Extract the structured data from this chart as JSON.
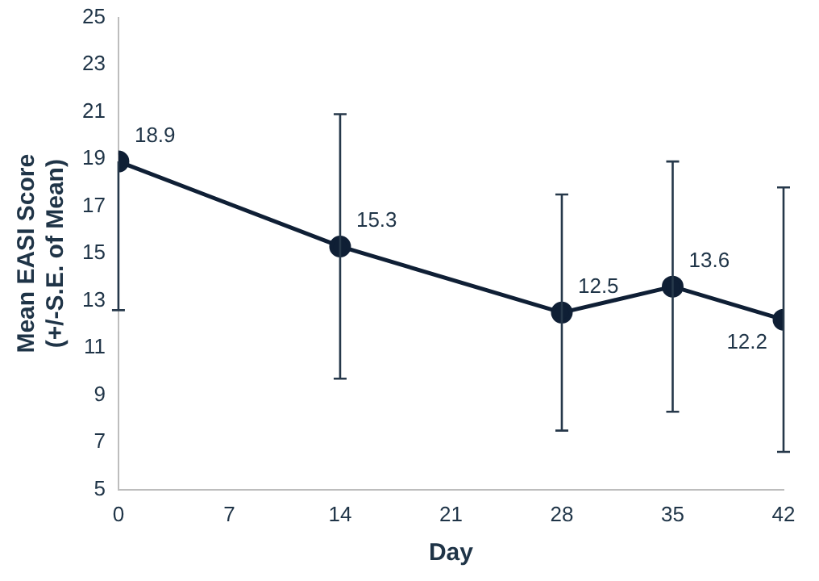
{
  "chart_data": {
    "type": "line",
    "xlabel": "Day",
    "ylabel": "Mean EASI Score\n(+/-S.E. of Mean)",
    "x": [
      0,
      14,
      28,
      35,
      42
    ],
    "series": [
      {
        "color": "#0f1f35",
        "values": [
          18.9,
          15.3,
          12.5,
          13.6,
          12.2
        ],
        "errors": [
          [
            12.6,
            18.9
          ],
          5.6,
          5.0,
          5.3,
          5.6
        ]
      }
    ],
    "xlim": [
      0,
      42
    ],
    "xticks": [
      0,
      7,
      14,
      21,
      28,
      35,
      42
    ],
    "ylim": [
      5,
      25
    ],
    "yticks": [
      5,
      7,
      9,
      11,
      13,
      15,
      17,
      19,
      21,
      23,
      25
    ],
    "data_labels": true,
    "marker": "circle",
    "line_style": "solid",
    "grid": false,
    "legend": false
  }
}
